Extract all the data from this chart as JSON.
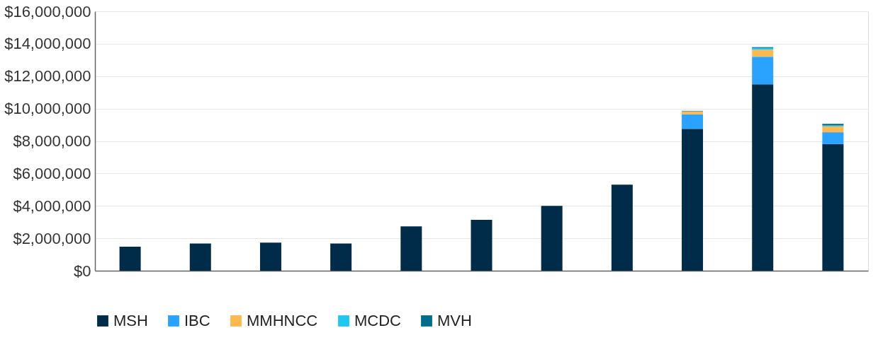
{
  "chart_data": {
    "type": "bar",
    "stacked": true,
    "categories": [
      null,
      null,
      null,
      null,
      null,
      null,
      null,
      null,
      null,
      null,
      null
    ],
    "series": [
      {
        "name": "MSH",
        "color": "#002b49",
        "values": [
          1480000,
          1680000,
          1730000,
          1680000,
          2740000,
          3140000,
          4000000,
          5310000,
          8750000,
          11500000,
          7810000
        ]
      },
      {
        "name": "IBC",
        "color": "#29a3ff",
        "values": [
          0,
          0,
          0,
          0,
          0,
          0,
          0,
          0,
          900000,
          1700000,
          730000
        ]
      },
      {
        "name": "MMHNCC",
        "color": "#ffb84d",
        "values": [
          0,
          0,
          0,
          0,
          0,
          0,
          0,
          0,
          180000,
          430000,
          360000
        ]
      },
      {
        "name": "MCDC",
        "color": "#1ec8f0",
        "values": [
          0,
          0,
          0,
          0,
          0,
          0,
          0,
          0,
          0,
          110000,
          60000
        ]
      },
      {
        "name": "MVH",
        "color": "#006e8a",
        "values": [
          0,
          0,
          0,
          0,
          0,
          0,
          0,
          0,
          30000,
          50000,
          100000
        ]
      }
    ],
    "ylim": [
      0,
      16000000
    ],
    "yticks": [
      {
        "value": 0,
        "label": "$0"
      },
      {
        "value": 2000000,
        "label": "$2,000,000"
      },
      {
        "value": 4000000,
        "label": "$4,000,000"
      },
      {
        "value": 6000000,
        "label": "$6,000,000"
      },
      {
        "value": 8000000,
        "label": "$8,000,000"
      },
      {
        "value": 10000000,
        "label": "$10,000,000"
      },
      {
        "value": 12000000,
        "label": "$12,000,000"
      },
      {
        "value": 14000000,
        "label": "$14,000,000"
      },
      {
        "value": 16000000,
        "label": "$16,000,000"
      }
    ],
    "grid": "y",
    "legend": "bottom",
    "tick_labels": "y"
  }
}
